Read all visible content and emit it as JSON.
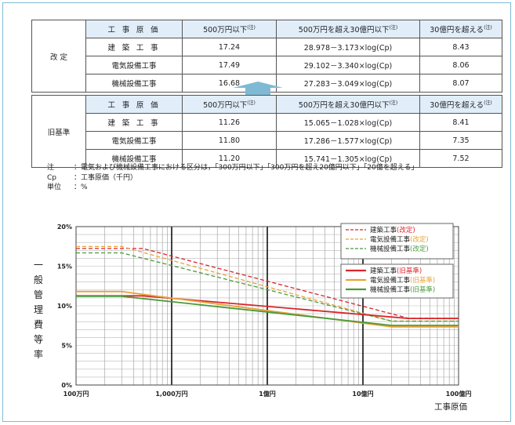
{
  "table_revised": {
    "group_label": "改 定",
    "header": [
      "工 事 原 価",
      "500万円以下",
      "500万円を超え30億円以下",
      "30億円を超える"
    ],
    "note_mark": "(注)",
    "rows": [
      [
        "建 築 工 事",
        "17.24",
        "28.978－3.173×log(Cp)",
        "8.43"
      ],
      [
        "電気設備工事",
        "17.49",
        "29.102－3.340×log(Cp)",
        "8.06"
      ],
      [
        "機械設備工事",
        "16.68",
        "27.283－3.049×log(Cp)",
        "8.07"
      ]
    ]
  },
  "table_old": {
    "group_label": "旧基準",
    "header": [
      "工 事 原 価",
      "500万円以下",
      "500万円を超え30億円以下",
      "30億円を超える"
    ],
    "note_mark": "(注)",
    "rows": [
      [
        "建 築 工 事",
        "11.26",
        "15.065－1.028×log(Cp)",
        "8.41"
      ],
      [
        "電気設備工事",
        "11.80",
        "17.286－1.577×log(Cp)",
        "7.35"
      ],
      [
        "機械設備工事",
        "11.20",
        "15.741－1.305×log(Cp)",
        "7.52"
      ]
    ]
  },
  "notes": [
    {
      "key": "注",
      "text": "：電気および機械設備工事における区分は，「300万円以下」「300万円を超え20億円以下」「20億を超える」"
    },
    {
      "key": "Cp",
      "text": "：工事原価（千円）"
    },
    {
      "key": "単位",
      "text": "：%"
    }
  ],
  "chart_data": {
    "type": "line",
    "x_scale": "log",
    "xlim": [
      1000,
      10000000
    ],
    "ylim": [
      0,
      20
    ],
    "xlabel": "工事原価",
    "ylabel": "一般管理費等率",
    "x_tick_labels": [
      "100万円",
      "1,000万円",
      "1億円",
      "10億円",
      "100億円"
    ],
    "y_tick_labels": [
      "0%",
      "5%",
      "10%",
      "15%",
      "20%"
    ],
    "y_ticks": [
      0,
      5,
      10,
      15,
      20
    ],
    "grid": true,
    "legend_position": "top-right",
    "series": [
      {
        "name": "建築工事(改定)",
        "color": "#d9262c",
        "dashed": true,
        "points": [
          [
            1000,
            17.24
          ],
          [
            5000,
            17.24
          ],
          [
            3000000,
            8.43
          ],
          [
            10000000,
            8.43
          ]
        ]
      },
      {
        "name": "電気設備工事(改定)",
        "color": "#e8a33a",
        "dashed": true,
        "points": [
          [
            1000,
            17.49
          ],
          [
            3000,
            17.49
          ],
          [
            2000000,
            8.06
          ],
          [
            10000000,
            8.06
          ]
        ]
      },
      {
        "name": "機械設備工事(改定)",
        "color": "#4a9a3c",
        "dashed": true,
        "points": [
          [
            1000,
            16.68
          ],
          [
            3000,
            16.68
          ],
          [
            2000000,
            8.07
          ],
          [
            10000000,
            8.07
          ]
        ]
      },
      {
        "name": "建築工事(旧基準)",
        "color": "#d9262c",
        "dashed": false,
        "points": [
          [
            1000,
            11.26
          ],
          [
            5000,
            11.26
          ],
          [
            3000000,
            8.41
          ],
          [
            10000000,
            8.41
          ]
        ]
      },
      {
        "name": "電気設備工事(旧基準)",
        "color": "#e8a33a",
        "dashed": false,
        "points": [
          [
            1000,
            11.8
          ],
          [
            3000,
            11.8
          ],
          [
            2000000,
            7.35
          ],
          [
            10000000,
            7.35
          ]
        ]
      },
      {
        "name": "機械設備工事(旧基準)",
        "color": "#4a9a3c",
        "dashed": false,
        "points": [
          [
            1000,
            11.2
          ],
          [
            3000,
            11.2
          ],
          [
            2000000,
            7.52
          ],
          [
            10000000,
            7.52
          ]
        ]
      }
    ],
    "legend_groups": [
      {
        "items": [
          {
            "base": "建築工事",
            "suffix": "(改定)",
            "color": "#d9262c",
            "dashed": true
          },
          {
            "base": "電気設備工事",
            "suffix": "(改定)",
            "color": "#e8a33a",
            "dashed": true
          },
          {
            "base": "機械設備工事",
            "suffix": "(改定)",
            "color": "#4a9a3c",
            "dashed": true
          }
        ]
      },
      {
        "items": [
          {
            "base": "建築工事",
            "suffix": "(旧基準)",
            "color": "#d9262c",
            "dashed": false
          },
          {
            "base": "電気設備工事",
            "suffix": "(旧基準)",
            "color": "#e8a33a",
            "dashed": false
          },
          {
            "base": "機械設備工事",
            "suffix": "(旧基準)",
            "color": "#4a9a3c",
            "dashed": false
          }
        ]
      }
    ]
  },
  "colors": {
    "frame": "#7fb9d4",
    "header_bg": "#e1eefa",
    "arrow": "#7fb9d4"
  }
}
